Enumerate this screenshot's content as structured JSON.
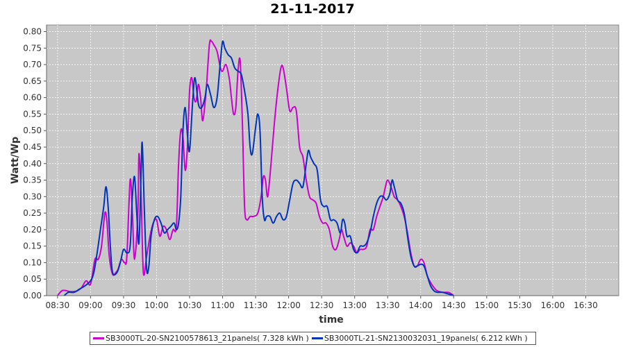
{
  "chart_data": {
    "type": "line",
    "title": "21-11-2017",
    "xlabel": "time",
    "ylabel": "Watt/Wp",
    "x_range": [
      "08:20",
      "17:00"
    ],
    "ylim": [
      0,
      0.82
    ],
    "x_ticks": [
      "08:30",
      "09:00",
      "09:30",
      "10:00",
      "10:30",
      "11:00",
      "11:30",
      "12:00",
      "12:30",
      "13:00",
      "13:30",
      "14:00",
      "14:30",
      "15:00",
      "15:30",
      "16:00",
      "16:30"
    ],
    "y_ticks": [
      "0.00",
      "0.05",
      "0.10",
      "0.15",
      "0.20",
      "0.25",
      "0.30",
      "0.35",
      "0.40",
      "0.45",
      "0.50",
      "0.55",
      "0.60",
      "0.65",
      "0.70",
      "0.75",
      "0.80"
    ],
    "grid": true,
    "legend_position": "bottom",
    "background": "#c8c8c8",
    "series": [
      {
        "name": "SB3000TL-20-SN2100578613_21panels( 7.328 kWh )",
        "color": "#cc00cc",
        "points": [
          [
            "08:30",
            0.0
          ],
          [
            "08:34",
            0.015
          ],
          [
            "08:38",
            0.015
          ],
          [
            "08:42",
            0.012
          ],
          [
            "08:48",
            0.015
          ],
          [
            "08:52",
            0.025
          ],
          [
            "08:56",
            0.045
          ],
          [
            "09:00",
            0.035
          ],
          [
            "09:04",
            0.11
          ],
          [
            "09:07",
            0.11
          ],
          [
            "09:10",
            0.15
          ],
          [
            "09:13",
            0.25
          ],
          [
            "09:15",
            0.22
          ],
          [
            "09:17",
            0.12
          ],
          [
            "09:20",
            0.065
          ],
          [
            "09:23",
            0.07
          ],
          [
            "09:25",
            0.08
          ],
          [
            "09:28",
            0.11
          ],
          [
            "09:31",
            0.1
          ],
          [
            "09:33",
            0.12
          ],
          [
            "09:36",
            0.35
          ],
          [
            "09:38",
            0.25
          ],
          [
            "09:40",
            0.11
          ],
          [
            "09:43",
            0.25
          ],
          [
            "09:44",
            0.43
          ],
          [
            "09:46",
            0.3
          ],
          [
            "09:48",
            0.07
          ],
          [
            "09:51",
            0.12
          ],
          [
            "09:54",
            0.18
          ],
          [
            "09:57",
            0.22
          ],
          [
            "10:00",
            0.23
          ],
          [
            "10:03",
            0.18
          ],
          [
            "10:06",
            0.21
          ],
          [
            "10:09",
            0.2
          ],
          [
            "10:12",
            0.17
          ],
          [
            "10:15",
            0.2
          ],
          [
            "10:18",
            0.21
          ],
          [
            "10:20",
            0.4
          ],
          [
            "10:22",
            0.5
          ],
          [
            "10:24",
            0.48
          ],
          [
            "10:26",
            0.38
          ],
          [
            "10:28",
            0.45
          ],
          [
            "10:30",
            0.62
          ],
          [
            "10:32",
            0.66
          ],
          [
            "10:34",
            0.6
          ],
          [
            "10:36",
            0.59
          ],
          [
            "10:38",
            0.64
          ],
          [
            "10:40",
            0.6
          ],
          [
            "10:42",
            0.53
          ],
          [
            "10:45",
            0.62
          ],
          [
            "10:48",
            0.76
          ],
          [
            "10:50",
            0.77
          ],
          [
            "10:52",
            0.76
          ],
          [
            "10:55",
            0.74
          ],
          [
            "10:58",
            0.69
          ],
          [
            "11:00",
            0.68
          ],
          [
            "11:03",
            0.7
          ],
          [
            "11:06",
            0.66
          ],
          [
            "11:08",
            0.6
          ],
          [
            "11:10",
            0.55
          ],
          [
            "11:12",
            0.57
          ],
          [
            "11:14",
            0.68
          ],
          [
            "11:16",
            0.71
          ],
          [
            "11:18",
            0.52
          ],
          [
            "11:20",
            0.27
          ],
          [
            "11:22",
            0.23
          ],
          [
            "11:25",
            0.24
          ],
          [
            "11:28",
            0.24
          ],
          [
            "11:32",
            0.25
          ],
          [
            "11:35",
            0.3
          ],
          [
            "11:37",
            0.36
          ],
          [
            "11:39",
            0.35
          ],
          [
            "11:41",
            0.3
          ],
          [
            "11:44",
            0.4
          ],
          [
            "11:47",
            0.52
          ],
          [
            "11:50",
            0.62
          ],
          [
            "11:53",
            0.69
          ],
          [
            "11:55",
            0.69
          ],
          [
            "11:58",
            0.63
          ],
          [
            "12:01",
            0.56
          ],
          [
            "12:04",
            0.57
          ],
          [
            "12:07",
            0.56
          ],
          [
            "12:10",
            0.45
          ],
          [
            "12:13",
            0.42
          ],
          [
            "12:16",
            0.35
          ],
          [
            "12:19",
            0.3
          ],
          [
            "12:22",
            0.29
          ],
          [
            "12:25",
            0.28
          ],
          [
            "12:28",
            0.24
          ],
          [
            "12:31",
            0.22
          ],
          [
            "12:34",
            0.22
          ],
          [
            "12:37",
            0.2
          ],
          [
            "12:40",
            0.15
          ],
          [
            "12:43",
            0.14
          ],
          [
            "12:46",
            0.17
          ],
          [
            "12:48",
            0.2
          ],
          [
            "12:50",
            0.18
          ],
          [
            "12:53",
            0.15
          ],
          [
            "12:56",
            0.16
          ],
          [
            "12:59",
            0.15
          ],
          [
            "13:02",
            0.13
          ],
          [
            "13:05",
            0.14
          ],
          [
            "13:08",
            0.14
          ],
          [
            "13:11",
            0.15
          ],
          [
            "13:14",
            0.2
          ],
          [
            "13:17",
            0.2
          ],
          [
            "13:20",
            0.24
          ],
          [
            "13:23",
            0.27
          ],
          [
            "13:26",
            0.3
          ],
          [
            "13:28",
            0.33
          ],
          [
            "13:30",
            0.35
          ],
          [
            "13:33",
            0.33
          ],
          [
            "13:36",
            0.3
          ],
          [
            "13:39",
            0.29
          ],
          [
            "13:42",
            0.27
          ],
          [
            "13:45",
            0.24
          ],
          [
            "13:48",
            0.19
          ],
          [
            "13:51",
            0.13
          ],
          [
            "13:54",
            0.09
          ],
          [
            "13:57",
            0.09
          ],
          [
            "14:00",
            0.11
          ],
          [
            "14:03",
            0.1
          ],
          [
            "14:06",
            0.06
          ],
          [
            "14:09",
            0.04
          ],
          [
            "14:12",
            0.025
          ],
          [
            "14:15",
            0.015
          ],
          [
            "14:20",
            0.01
          ],
          [
            "14:25",
            0.01
          ],
          [
            "14:28",
            0.005
          ],
          [
            "14:30",
            0.0
          ]
        ]
      },
      {
        "name": "SB3000TL-21-SN2130032031_19panels( 6.212 kWh )",
        "color": "#0033bb",
        "points": [
          [
            "08:36",
            0.0
          ],
          [
            "08:40",
            0.01
          ],
          [
            "08:45",
            0.01
          ],
          [
            "08:50",
            0.02
          ],
          [
            "08:55",
            0.03
          ],
          [
            "09:00",
            0.045
          ],
          [
            "09:03",
            0.07
          ],
          [
            "09:06",
            0.13
          ],
          [
            "09:09",
            0.2
          ],
          [
            "09:12",
            0.27
          ],
          [
            "09:14",
            0.33
          ],
          [
            "09:16",
            0.27
          ],
          [
            "09:18",
            0.15
          ],
          [
            "09:20",
            0.07
          ],
          [
            "09:24",
            0.07
          ],
          [
            "09:27",
            0.1
          ],
          [
            "09:30",
            0.14
          ],
          [
            "09:33",
            0.13
          ],
          [
            "09:36",
            0.15
          ],
          [
            "09:38",
            0.3
          ],
          [
            "09:40",
            0.36
          ],
          [
            "09:42",
            0.25
          ],
          [
            "09:44",
            0.16
          ],
          [
            "09:46",
            0.38
          ],
          [
            "09:47",
            0.46
          ],
          [
            "09:49",
            0.25
          ],
          [
            "09:51",
            0.08
          ],
          [
            "09:53",
            0.09
          ],
          [
            "09:55",
            0.18
          ],
          [
            "09:58",
            0.23
          ],
          [
            "10:01",
            0.24
          ],
          [
            "10:04",
            0.22
          ],
          [
            "10:07",
            0.19
          ],
          [
            "10:10",
            0.2
          ],
          [
            "10:13",
            0.21
          ],
          [
            "10:16",
            0.22
          ],
          [
            "10:18",
            0.2
          ],
          [
            "10:20",
            0.22
          ],
          [
            "10:22",
            0.3
          ],
          [
            "10:24",
            0.5
          ],
          [
            "10:26",
            0.57
          ],
          [
            "10:28",
            0.49
          ],
          [
            "10:30",
            0.44
          ],
          [
            "10:33",
            0.6
          ],
          [
            "10:35",
            0.66
          ],
          [
            "10:38",
            0.58
          ],
          [
            "10:41",
            0.57
          ],
          [
            "10:44",
            0.6
          ],
          [
            "10:46",
            0.64
          ],
          [
            "10:49",
            0.61
          ],
          [
            "10:52",
            0.57
          ],
          [
            "10:55",
            0.6
          ],
          [
            "10:58",
            0.71
          ],
          [
            "11:00",
            0.77
          ],
          [
            "11:02",
            0.75
          ],
          [
            "11:05",
            0.73
          ],
          [
            "11:08",
            0.72
          ],
          [
            "11:11",
            0.69
          ],
          [
            "11:14",
            0.68
          ],
          [
            "11:17",
            0.67
          ],
          [
            "11:20",
            0.62
          ],
          [
            "11:23",
            0.55
          ],
          [
            "11:25",
            0.45
          ],
          [
            "11:27",
            0.43
          ],
          [
            "11:30",
            0.51
          ],
          [
            "11:32",
            0.55
          ],
          [
            "11:34",
            0.5
          ],
          [
            "11:36",
            0.3
          ],
          [
            "11:38",
            0.23
          ],
          [
            "11:40",
            0.24
          ],
          [
            "11:43",
            0.24
          ],
          [
            "11:46",
            0.22
          ],
          [
            "11:49",
            0.24
          ],
          [
            "11:52",
            0.25
          ],
          [
            "11:55",
            0.23
          ],
          [
            "11:58",
            0.24
          ],
          [
            "12:01",
            0.29
          ],
          [
            "12:04",
            0.34
          ],
          [
            "12:07",
            0.35
          ],
          [
            "12:10",
            0.34
          ],
          [
            "12:13",
            0.33
          ],
          [
            "12:16",
            0.4
          ],
          [
            "12:18",
            0.44
          ],
          [
            "12:20",
            0.42
          ],
          [
            "12:23",
            0.4
          ],
          [
            "12:26",
            0.38
          ],
          [
            "12:29",
            0.29
          ],
          [
            "12:32",
            0.27
          ],
          [
            "12:35",
            0.27
          ],
          [
            "12:38",
            0.23
          ],
          [
            "12:41",
            0.23
          ],
          [
            "12:44",
            0.22
          ],
          [
            "12:47",
            0.19
          ],
          [
            "12:49",
            0.23
          ],
          [
            "12:51",
            0.22
          ],
          [
            "12:53",
            0.18
          ],
          [
            "12:56",
            0.18
          ],
          [
            "12:59",
            0.14
          ],
          [
            "13:02",
            0.13
          ],
          [
            "13:05",
            0.15
          ],
          [
            "13:08",
            0.15
          ],
          [
            "13:11",
            0.16
          ],
          [
            "13:14",
            0.19
          ],
          [
            "13:17",
            0.24
          ],
          [
            "13:20",
            0.28
          ],
          [
            "13:23",
            0.3
          ],
          [
            "13:26",
            0.3
          ],
          [
            "13:29",
            0.29
          ],
          [
            "13:32",
            0.31
          ],
          [
            "13:34",
            0.35
          ],
          [
            "13:36",
            0.33
          ],
          [
            "13:39",
            0.29
          ],
          [
            "13:42",
            0.28
          ],
          [
            "13:45",
            0.25
          ],
          [
            "13:48",
            0.18
          ],
          [
            "13:51",
            0.12
          ],
          [
            "13:54",
            0.09
          ],
          [
            "13:57",
            0.09
          ],
          [
            "14:00",
            0.095
          ],
          [
            "14:03",
            0.09
          ],
          [
            "14:06",
            0.06
          ],
          [
            "14:09",
            0.03
          ],
          [
            "14:12",
            0.015
          ],
          [
            "14:15",
            0.01
          ],
          [
            "14:20",
            0.01
          ],
          [
            "14:25",
            0.005
          ],
          [
            "14:30",
            0.0
          ]
        ]
      }
    ]
  }
}
